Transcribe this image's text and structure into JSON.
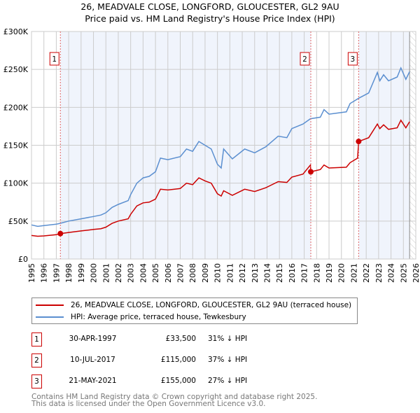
{
  "title_line1": "26, MEADVALE CLOSE, LONGFORD, GLOUCESTER, GL2 9AU",
  "title_line2": "Price paid vs. HM Land Registry's House Price Index (HPI)",
  "legend": [
    {
      "label": "26, MEADVALE CLOSE, LONGFORD, GLOUCESTER, GL2 9AU (terraced house)",
      "color": "#cc0000"
    },
    {
      "label": "HPI: Average price, terraced house, Tewkesbury",
      "color": "#5b8fd0"
    }
  ],
  "transactions": [
    {
      "num": "1",
      "date": "30-APR-1997",
      "price": "£33,500",
      "hpi": "31% ↓ HPI"
    },
    {
      "num": "2",
      "date": "10-JUL-2017",
      "price": "£115,000",
      "hpi": "37% ↓ HPI"
    },
    {
      "num": "3",
      "date": "21-MAY-2021",
      "price": "£155,000",
      "hpi": "27% ↓ HPI"
    }
  ],
  "footer_line1": "Contains HM Land Registry data © Crown copyright and database right 2025.",
  "footer_line2": "This data is licensed under the Open Government Licence v3.0.",
  "chart_data": {
    "type": "line",
    "title": "26, MEADVALE CLOSE, LONGFORD, GLOUCESTER, GL2 9AU — Price paid vs. HM Land Registry's House Price Index (HPI)",
    "xlim": [
      1995,
      2026
    ],
    "ylim": [
      0,
      300000
    ],
    "x_ticks": [
      "1995",
      "1996",
      "1997",
      "1998",
      "1999",
      "2000",
      "2001",
      "2002",
      "2003",
      "2004",
      "2005",
      "2006",
      "2007",
      "2008",
      "2009",
      "2010",
      "2011",
      "2012",
      "2013",
      "2014",
      "2015",
      "2016",
      "2017",
      "2018",
      "2019",
      "2020",
      "2021",
      "2022",
      "2023",
      "2024",
      "2025",
      "2026"
    ],
    "y_ticks": [
      {
        "v": 0,
        "label": "£0"
      },
      {
        "v": 50000,
        "label": "£50K"
      },
      {
        "v": 100000,
        "label": "£100K"
      },
      {
        "v": 150000,
        "label": "£150K"
      },
      {
        "v": 200000,
        "label": "£200K"
      },
      {
        "v": 250000,
        "label": "£250K"
      },
      {
        "v": 300000,
        "label": "£300K"
      }
    ],
    "grid": true,
    "data_end": 2025.5,
    "series": [
      {
        "name": "HPI: Average price, terraced house, Tewkesbury",
        "color": "#5b8fd0",
        "x": [
          1995,
          1995.5,
          1996,
          1997,
          1997.3,
          1998,
          1999,
          2000,
          2000.6,
          2001,
          2001.5,
          2002,
          2002.8,
          2003,
          2003.5,
          2004,
          2004.5,
          2005,
          2005.4,
          2006,
          2007,
          2007.5,
          2008,
          2008.5,
          2009,
          2009.5,
          2010,
          2010.3,
          2010.5,
          2011.2,
          2012.2,
          2013,
          2013.9,
          2014.9,
          2015.6,
          2016,
          2016.9,
          2017.5,
          2018.3,
          2018.6,
          2019,
          2020.4,
          2020.7,
          2021.4,
          2022.2,
          2022.9,
          2023.1,
          2023.4,
          2023.8,
          2024.5,
          2024.8,
          2025.2,
          2025.5
        ],
        "y": [
          45000,
          43000,
          44000,
          46000,
          47000,
          50000,
          53000,
          56000,
          58000,
          61000,
          68000,
          72000,
          77000,
          85000,
          100000,
          107000,
          109000,
          115000,
          133000,
          131000,
          135000,
          145000,
          142000,
          155000,
          150000,
          145000,
          125000,
          120000,
          145000,
          132000,
          145000,
          140000,
          148000,
          162000,
          160000,
          172000,
          178000,
          185000,
          187000,
          197000,
          191000,
          194000,
          205000,
          212000,
          219000,
          246000,
          235000,
          243000,
          235000,
          240000,
          252000,
          237000,
          247000
        ]
      },
      {
        "name": "26, MEADVALE CLOSE, LONGFORD, GLOUCESTER, GL2 9AU (terraced house)",
        "color": "#cc0000",
        "x": [
          1995,
          1995.5,
          1996,
          1997,
          1997.33,
          1998,
          1999,
          2000,
          2000.6,
          2001,
          2001.5,
          2002,
          2002.8,
          2003,
          2003.5,
          2004,
          2004.5,
          2005,
          2005.4,
          2006,
          2007,
          2007.5,
          2008,
          2008.5,
          2009,
          2009.5,
          2010,
          2010.3,
          2010.5,
          2011.2,
          2012.2,
          2013,
          2013.9,
          2014.9,
          2015.6,
          2016,
          2016.9,
          2017.5,
          2017.53,
          2018.3,
          2018.6,
          2019,
          2020.4,
          2020.7,
          2021.3,
          2021.39,
          2022.2,
          2022.9,
          2023.1,
          2023.4,
          2023.8,
          2024.5,
          2024.8,
          2025.2,
          2025.5
        ],
        "y": [
          31000,
          30000,
          30500,
          32000,
          33500,
          35000,
          37000,
          39000,
          40000,
          42000,
          47000,
          50000,
          53000,
          59000,
          70000,
          74000,
          75000,
          79000,
          92000,
          91000,
          93000,
          100000,
          98000,
          107000,
          103000,
          100000,
          86000,
          83000,
          90000,
          84000,
          92000,
          89000,
          94000,
          102000,
          101000,
          108000,
          112000,
          124000,
          115000,
          118000,
          124000,
          120000,
          121000,
          127000,
          133000,
          155000,
          160000,
          178000,
          172000,
          177000,
          171000,
          173000,
          183000,
          173000,
          181000
        ]
      }
    ],
    "sales": [
      {
        "num": "1",
        "x": 1997.33,
        "y": 33500
      },
      {
        "num": "2",
        "x": 2017.53,
        "y": 115000
      },
      {
        "num": "3",
        "x": 2021.39,
        "y": 155000
      }
    ]
  }
}
